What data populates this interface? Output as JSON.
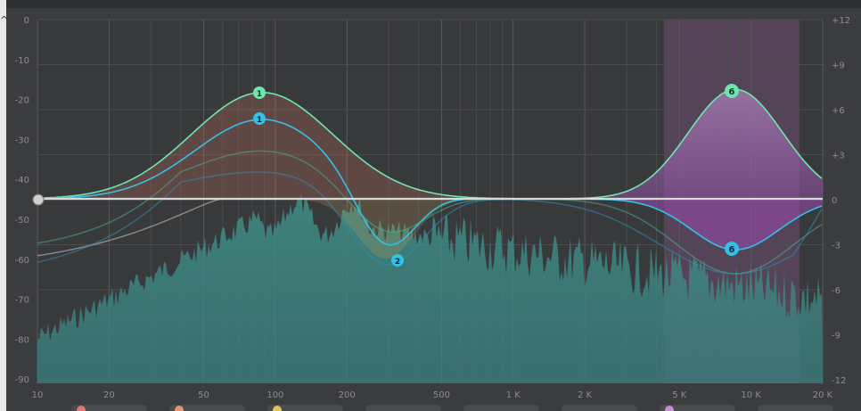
{
  "colors": {
    "background": "#3a3b3d",
    "grid": "#4b4c4f",
    "grid_major": "#555659",
    "green_band": "#5fe0a0",
    "blue_band": "#28b8e6",
    "pink_band": "#c98ad6",
    "spectrum": "#3f8f86",
    "flat_line": "#d9d9d9"
  },
  "db_scale_left": [
    "0",
    "-10",
    "-20",
    "-30",
    "-40",
    "-50",
    "-60",
    "-70",
    "-80",
    "-90"
  ],
  "db_scale_right": [
    "+12",
    "+9",
    "+6",
    "+3",
    "0",
    "-3",
    "-6",
    "-9",
    "-12"
  ],
  "freq_scale": [
    "10",
    "20",
    "50",
    "100",
    "200",
    "500",
    "1 K",
    "2 K",
    "5 K",
    "10 K",
    "20 K"
  ],
  "bands": [
    {
      "label": "1",
      "color": "green",
      "state": "boost"
    },
    {
      "label": "1",
      "color": "blue",
      "state": "boost"
    },
    {
      "label": "2",
      "color": "blue",
      "state": "cut"
    },
    {
      "label": "6",
      "color": "green",
      "state": "boost"
    },
    {
      "label": "6",
      "color": "blue",
      "state": "cut"
    }
  ],
  "highlight_region": {
    "from": "4 K",
    "to": "16 K"
  }
}
